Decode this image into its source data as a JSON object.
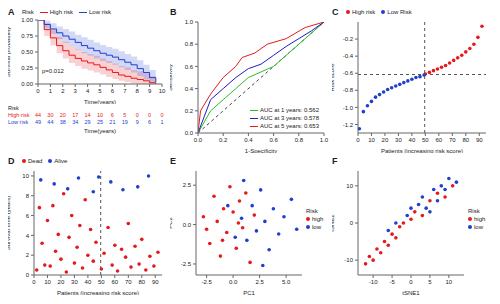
{
  "chart_data": [
    {
      "title": "A",
      "type": "line",
      "line_style": "step",
      "x_label": "Time(years)",
      "y_label": "Survival probability",
      "legend": "top",
      "legend_title": "Risk",
      "annotation": "p=0.012",
      "x": [
        0,
        0.5,
        1,
        1.5,
        2,
        2.5,
        3,
        3.5,
        4,
        4.5,
        5,
        5.5,
        6,
        6.5,
        7,
        7.5,
        8,
        8.5,
        9,
        9.5
      ],
      "xlim": [
        0,
        10
      ],
      "xticks": [
        0,
        1,
        2,
        3,
        4,
        5,
        6,
        7,
        8,
        9,
        10
      ],
      "ylim": [
        0,
        1
      ],
      "yticks": [
        {
          "value": 0,
          "label": "0.00"
        },
        {
          "value": 0.25,
          "label": "0.25"
        },
        {
          "value": 0.5,
          "label": "0.50"
        },
        {
          "value": 0.75,
          "label": "0.75"
        },
        {
          "value": 1,
          "label": "1.00"
        }
      ],
      "series": [
        {
          "name": "High risk",
          "color": "#E41A1C",
          "values": [
            1.0,
            0.85,
            0.72,
            0.6,
            0.52,
            0.45,
            0.4,
            0.36,
            0.33,
            0.3,
            0.26,
            0.22,
            0.18,
            0.14,
            0.12,
            0.09,
            0.07,
            0.05,
            0.02,
            0.0
          ],
          "lower": [
            1.0,
            0.75,
            0.6,
            0.48,
            0.4,
            0.33,
            0.28,
            0.24,
            0.21,
            0.18,
            0.15,
            0.11,
            0.08,
            0.05,
            0.03,
            0.01,
            0.0,
            0.0,
            0.0,
            0.0
          ],
          "upper": [
            1.0,
            0.95,
            0.85,
            0.74,
            0.66,
            0.59,
            0.54,
            0.5,
            0.47,
            0.44,
            0.4,
            0.36,
            0.32,
            0.28,
            0.26,
            0.22,
            0.2,
            0.17,
            0.12,
            0.08
          ]
        },
        {
          "name": "Low risk",
          "color": "#1F3FD1",
          "values": [
            1.0,
            0.93,
            0.86,
            0.8,
            0.75,
            0.7,
            0.65,
            0.6,
            0.56,
            0.52,
            0.48,
            0.45,
            0.42,
            0.38,
            0.34,
            0.3,
            0.24,
            0.18,
            0.1,
            0.03
          ],
          "lower": [
            1.0,
            0.87,
            0.78,
            0.7,
            0.64,
            0.59,
            0.53,
            0.48,
            0.44,
            0.4,
            0.36,
            0.33,
            0.3,
            0.26,
            0.22,
            0.18,
            0.12,
            0.07,
            0.01,
            0.0
          ],
          "upper": [
            1.0,
            0.99,
            0.95,
            0.9,
            0.86,
            0.82,
            0.77,
            0.73,
            0.69,
            0.65,
            0.61,
            0.58,
            0.55,
            0.51,
            0.47,
            0.43,
            0.37,
            0.3,
            0.22,
            0.12
          ]
        }
      ],
      "risk_table": {
        "title": "Risk",
        "x_label": "Time(years)",
        "times": [
          0,
          1,
          2,
          3,
          4,
          5,
          6,
          7,
          8,
          9,
          10
        ],
        "rows": [
          {
            "name": "High risk",
            "color": "#E41A1C",
            "values": [
              44,
              30,
              20,
              17,
              14,
              10,
              6,
              5,
              0,
              0,
              0
            ]
          },
          {
            "name": "Low risk",
            "color": "#1F3FD1",
            "values": [
              49,
              44,
              38,
              34,
              29,
              25,
              21,
              19,
              9,
              6,
              1
            ]
          }
        ]
      }
    },
    {
      "title": "B",
      "type": "line",
      "x_label": "1-Specificity",
      "y_label": "Sensitivity",
      "legend": "lower right",
      "xlim": [
        0,
        1
      ],
      "xticks": [
        {
          "value": 0,
          "label": "0.0"
        },
        0.2,
        0.4,
        0.6,
        0.8,
        {
          "value": 1,
          "label": "1.0"
        }
      ],
      "ylim": [
        0,
        1
      ],
      "yticks": [
        {
          "value": 0,
          "label": "0.0"
        },
        0.2,
        0.4,
        0.6,
        0.8,
        {
          "value": 1,
          "label": "1.0"
        }
      ],
      "series": [
        {
          "name": "AUC at 1 years: 0.562",
          "color": "#2DBE2D",
          "x": [
            0,
            0.05,
            0.1,
            0.2,
            0.3,
            0.4,
            0.5,
            0.6,
            0.7,
            0.8,
            0.9,
            1
          ],
          "values": [
            0,
            0.1,
            0.2,
            0.3,
            0.4,
            0.5,
            0.55,
            0.6,
            0.7,
            0.8,
            0.9,
            1
          ]
        },
        {
          "name": "AUC at 3 years: 0.578",
          "color": "#1C1CC8",
          "x": [
            0,
            0.05,
            0.1,
            0.2,
            0.3,
            0.4,
            0.5,
            0.6,
            0.7,
            0.8,
            0.9,
            1
          ],
          "values": [
            0,
            0.15,
            0.3,
            0.4,
            0.5,
            0.58,
            0.62,
            0.7,
            0.78,
            0.85,
            0.92,
            1
          ]
        },
        {
          "name": "AUC at 5 years: 0.653",
          "color": "#E41A1C",
          "x": [
            0,
            0.02,
            0.1,
            0.2,
            0.3,
            0.35,
            0.45,
            0.55,
            0.7,
            0.85,
            1
          ],
          "values": [
            0,
            0.2,
            0.35,
            0.5,
            0.6,
            0.68,
            0.72,
            0.8,
            0.85,
            0.95,
            1
          ]
        }
      ]
    },
    {
      "title": "C",
      "type": "scatter",
      "x_label": "Patients (increasing risk score)",
      "y_label": "Risk score",
      "legend": "top",
      "xlim": [
        0,
        95
      ],
      "xticks": [
        0,
        10,
        20,
        30,
        40,
        50,
        60,
        70,
        80,
        90
      ],
      "ylim": [
        -1.3,
        0
      ],
      "yticks": [
        -1.2,
        {
          "value": -1,
          "label": "-1.0"
        },
        -0.8,
        -0.6,
        -0.4,
        -0.2
      ],
      "cutoff": {
        "x": 49.5,
        "y": -0.615
      },
      "series": [
        {
          "name": "High risk",
          "color": "#E41A1C",
          "x": [
            50,
            53,
            56,
            59,
            62,
            65,
            68,
            71,
            74,
            77,
            80,
            83,
            86,
            89,
            92
          ],
          "values": [
            -0.61,
            -0.59,
            -0.57,
            -0.55,
            -0.53,
            -0.51,
            -0.48,
            -0.45,
            -0.42,
            -0.39,
            -0.35,
            -0.31,
            -0.26,
            -0.18,
            -0.05
          ]
        },
        {
          "name": "Low Risk",
          "color": "#1F3FD1",
          "x": [
            1,
            4,
            7,
            10,
            13,
            16,
            19,
            22,
            25,
            28,
            31,
            34,
            37,
            40,
            43,
            46,
            49
          ],
          "values": [
            -1.25,
            -1.05,
            -0.98,
            -0.93,
            -0.88,
            -0.85,
            -0.82,
            -0.79,
            -0.77,
            -0.75,
            -0.73,
            -0.71,
            -0.69,
            -0.67,
            -0.65,
            -0.64,
            -0.62
          ]
        }
      ]
    },
    {
      "title": "D",
      "type": "scatter",
      "x_label": "Patients (increasing risk score)",
      "y_label": "Survival time (years)",
      "legend": "top",
      "xlim": [
        0,
        95
      ],
      "xticks": [
        0,
        10,
        20,
        30,
        40,
        50,
        60,
        70,
        80,
        90
      ],
      "ylim": [
        0,
        10.5
      ],
      "yticks": [
        0,
        2,
        4,
        6,
        8,
        10
      ],
      "cutoff": {
        "x": 49.5
      },
      "series": [
        {
          "name": "Dead",
          "color": "#E41A1C",
          "x": [
            2,
            4,
            6,
            8,
            10,
            12,
            14,
            16,
            18,
            20,
            22,
            24,
            26,
            28,
            30,
            32,
            34,
            36,
            38,
            40,
            42,
            44,
            46,
            50,
            52,
            55,
            58,
            60,
            62,
            65,
            68,
            70,
            72,
            75,
            78,
            80,
            83,
            86,
            89,
            92
          ],
          "values": [
            0.5,
            6.8,
            3.2,
            1.0,
            5.5,
            0.9,
            7.0,
            2.4,
            4.1,
            1.6,
            8.2,
            0.3,
            3.8,
            6.0,
            1.2,
            2.8,
            5.0,
            0.7,
            7.6,
            2.0,
            4.6,
            1.4,
            3.3,
            0.6,
            2.2,
            4.8,
            1.0,
            3.0,
            0.4,
            2.6,
            1.8,
            5.2,
            0.8,
            2.9,
            1.1,
            3.6,
            0.5,
            1.9,
            0.9,
            2.3
          ]
        },
        {
          "name": "Alive",
          "color": "#1F3FD1",
          "x": [
            5,
            15,
            25,
            33,
            44,
            48,
            57,
            66,
            77,
            85
          ],
          "values": [
            9.6,
            9.2,
            8.7,
            9.8,
            8.4,
            9.9,
            9.4,
            8.6,
            8.9,
            10.0
          ]
        }
      ]
    },
    {
      "title": "E",
      "type": "scatter",
      "x_label": "PC1",
      "y_label": "PC2",
      "legend": "right",
      "legend_title": "Risk",
      "xlim": [
        -3.5,
        6.5
      ],
      "xticks": [
        -2.5,
        {
          "value": 0,
          "label": "0.0"
        },
        2.5,
        {
          "value": 5,
          "label": "5.0"
        }
      ],
      "ylim": [
        -3.2,
        3.4
      ],
      "yticks": [
        -2.5,
        {
          "value": 0,
          "label": "0.0"
        },
        2.5
      ],
      "series": [
        {
          "name": "high",
          "color": "#E41A1C",
          "x": [
            -2.8,
            -2.2,
            -1.8,
            -1.5,
            -1.2,
            -0.9,
            -0.6,
            -0.3,
            0,
            0.3,
            0.6,
            0.9,
            1.2,
            1.6,
            2.0,
            -2.5,
            -1.0,
            0.5
          ],
          "values": [
            0.5,
            -1.2,
            1.8,
            0.2,
            -2.0,
            1.0,
            -0.5,
            2.4,
            0.8,
            -1.5,
            1.5,
            -0.2,
            2.0,
            -2.4,
            0.6,
            -0.3,
            -1.0,
            0.1
          ]
        },
        {
          "name": "low",
          "color": "#1F3FD1",
          "x": [
            -0.5,
            0.2,
            0.8,
            1.3,
            1.8,
            2.2,
            2.6,
            3.0,
            3.4,
            3.8,
            4.3,
            4.8,
            5.5,
            6.0,
            1.0,
            2.8
          ],
          "values": [
            1.2,
            -0.8,
            0.4,
            -1.0,
            1.2,
            -0.4,
            2.2,
            0.2,
            -1.6,
            1.0,
            -0.6,
            0.5,
            1.6,
            -0.3,
            2.8,
            -2.6
          ]
        }
      ]
    },
    {
      "title": "F",
      "type": "scatter",
      "x_label": "tSNE1",
      "y_label": "tSNE2",
      "legend": "right",
      "legend_title": "Risk",
      "xlim": [
        -14,
        14
      ],
      "xticks": [
        -10,
        -5,
        0,
        5,
        10
      ],
      "ylim": [
        -14,
        14
      ],
      "yticks": [
        -10,
        0,
        10
      ],
      "series": [
        {
          "name": "high",
          "color": "#E41A1C",
          "x": [
            -12,
            -11,
            -10,
            -9,
            -8,
            -7,
            -6,
            -5,
            -4,
            -3,
            -2,
            0,
            1,
            3,
            5,
            7,
            9,
            11
          ],
          "values": [
            -11,
            -9,
            -10,
            -7,
            -8,
            -5,
            -6,
            -3,
            -4,
            -1,
            0,
            1,
            3,
            2,
            6,
            8,
            7,
            10
          ]
        },
        {
          "name": "low",
          "color": "#1F3FD1",
          "x": [
            -6,
            -4,
            -1,
            0,
            2,
            3,
            4,
            6,
            7,
            8,
            9,
            10,
            12,
            5
          ],
          "values": [
            -2,
            0,
            2,
            4,
            5,
            7,
            4,
            9,
            6,
            10,
            9,
            12,
            11,
            3
          ]
        }
      ]
    }
  ]
}
